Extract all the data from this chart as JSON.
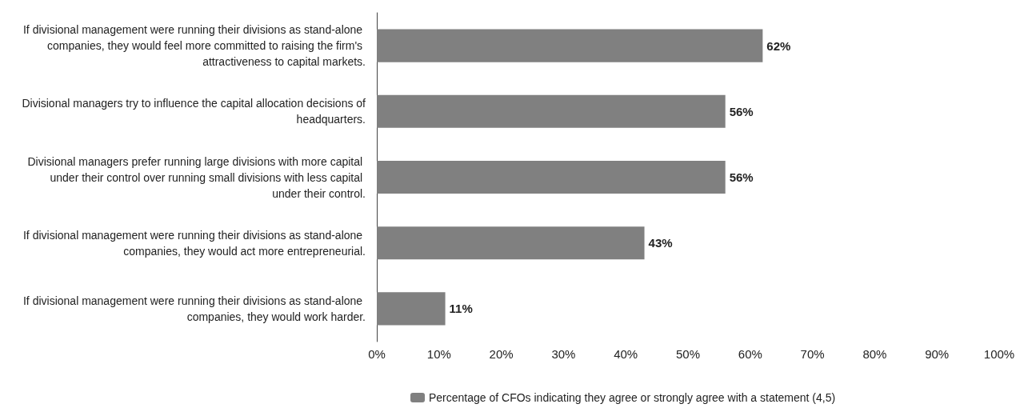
{
  "chart_data": {
    "type": "bar",
    "orientation": "horizontal",
    "categories": [
      "If divisional management were running their divisions as stand-alone companies, they would feel more committed to raising the firm's attractiveness to capital markets.",
      "Divisional managers try to influence the capital allocation decisions of headquarters.",
      "Divisional managers prefer running large divisions with more capital under their control over running small divisions with less capital under their control.",
      "If divisional management were running their divisions as stand-alone companies, they would act more entrepreneurial.",
      "If divisional management were running their divisions as stand-alone companies, they would work harder."
    ],
    "series": [
      {
        "name": "Percentage of CFOs indicating they agree or strongly agree with a statement (4,5)",
        "color": "#808080",
        "values": [
          62,
          56,
          56,
          43,
          11
        ],
        "value_labels": [
          "62%",
          "56%",
          "56%",
          "43%",
          "11%"
        ]
      }
    ],
    "xlim": [
      0,
      100
    ],
    "xticks": [
      {
        "value": 0,
        "label": "0%"
      },
      {
        "value": 10,
        "label": "10%"
      },
      {
        "value": 20,
        "label": "20%"
      },
      {
        "value": 30,
        "label": "30%"
      },
      {
        "value": 40,
        "label": "40%"
      },
      {
        "value": 50,
        "label": "50%"
      },
      {
        "value": 60,
        "label": "60%"
      },
      {
        "value": 70,
        "label": "70%"
      },
      {
        "value": 80,
        "label": "80%"
      },
      {
        "value": 90,
        "label": "90%"
      },
      {
        "value": 100,
        "label": "100%"
      }
    ],
    "grid": false,
    "legend": "bottom"
  }
}
